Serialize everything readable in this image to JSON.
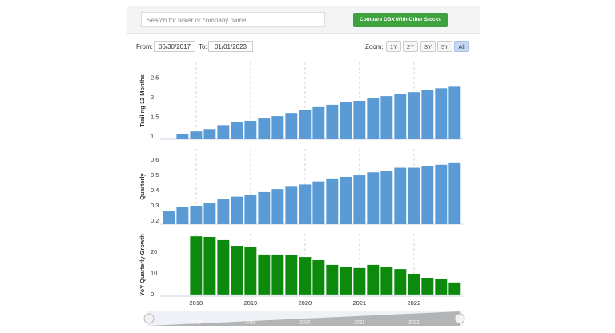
{
  "search_placeholder": "Search for ticker or company name...",
  "compare_button": "Compare DBX With Other Stocks",
  "from_label": "From:",
  "from_date": "06/30/2017",
  "to_label": "To:",
  "to_date": "01/01/2023",
  "zoom_label": "Zoom:",
  "zoom_options": [
    "1Y",
    "2Y",
    "3Y",
    "5Y",
    "All"
  ],
  "active_zoom": "All",
  "chart_data": [
    {
      "type": "bar",
      "y_label": "Trailing 12 Months",
      "color": "#5b9bd5",
      "x": [
        2017.5,
        2017.75,
        2018.0,
        2018.25,
        2018.5,
        2018.75,
        2019.0,
        2019.25,
        2019.5,
        2019.75,
        2020.0,
        2020.25,
        2020.5,
        2020.75,
        2021.0,
        2021.25,
        2021.5,
        2021.75,
        2022.0,
        2022.25,
        2022.5,
        2022.75
      ],
      "values": [
        null,
        1.08,
        1.14,
        1.2,
        1.3,
        1.37,
        1.41,
        1.47,
        1.53,
        1.61,
        1.69,
        1.76,
        1.82,
        1.88,
        1.92,
        1.98,
        2.04,
        2.1,
        2.14,
        2.2,
        2.24,
        2.28
      ],
      "xlim": [
        2017.34,
        2022.9
      ],
      "xticks": [
        2018,
        2019,
        2020,
        2021,
        2022
      ],
      "ylim": [
        0.94,
        2.9
      ],
      "yticks": [
        1.0,
        1.5,
        2.0,
        2.5
      ]
    },
    {
      "type": "bar",
      "y_label": "Quarterly",
      "color": "#5b9bd5",
      "x": [
        2017.5,
        2017.75,
        2018.0,
        2018.25,
        2018.5,
        2018.75,
        2019.0,
        2019.25,
        2019.5,
        2019.75,
        2020.0,
        2020.25,
        2020.5,
        2020.75,
        2021.0,
        2021.25,
        2021.5,
        2021.75,
        2022.0,
        2022.25,
        2022.5,
        2022.75
      ],
      "values": [
        0.263,
        0.29,
        0.3,
        0.32,
        0.345,
        0.36,
        0.37,
        0.39,
        0.41,
        0.43,
        0.44,
        0.46,
        0.48,
        0.49,
        0.5,
        0.52,
        0.53,
        0.55,
        0.55,
        0.56,
        0.57,
        0.58
      ],
      "xlim": [
        2017.34,
        2022.9
      ],
      "xticks": [
        2018,
        2019,
        2020,
        2021,
        2022
      ],
      "ylim": [
        0.179,
        0.674
      ],
      "yticks": [
        0.2,
        0.3,
        0.4,
        0.5,
        0.6
      ]
    },
    {
      "type": "bar",
      "y_label": "YoY Quarterly Growth",
      "color": "#0b8a0b",
      "x": [
        2018.0,
        2018.25,
        2018.5,
        2018.75,
        2019.0,
        2019.25,
        2019.5,
        2019.75,
        2020.0,
        2020.25,
        2020.5,
        2020.75,
        2021.0,
        2021.25,
        2021.5,
        2021.75,
        2022.0,
        2022.25,
        2022.5,
        2022.75
      ],
      "values": [
        27.5,
        27.2,
        25.7,
        23,
        22.3,
        18.9,
        18.9,
        18.5,
        17.7,
        16.2,
        14,
        13.2,
        12.5,
        14,
        12.8,
        12,
        9.8,
        7.9,
        7.5,
        5.7
      ],
      "xlim": [
        2017.34,
        2022.9
      ],
      "xticks": [
        2018,
        2019,
        2020,
        2021,
        2022
      ],
      "ylim": [
        -0.8,
        28.7
      ],
      "yticks": [
        0,
        10,
        20
      ]
    }
  ]
}
